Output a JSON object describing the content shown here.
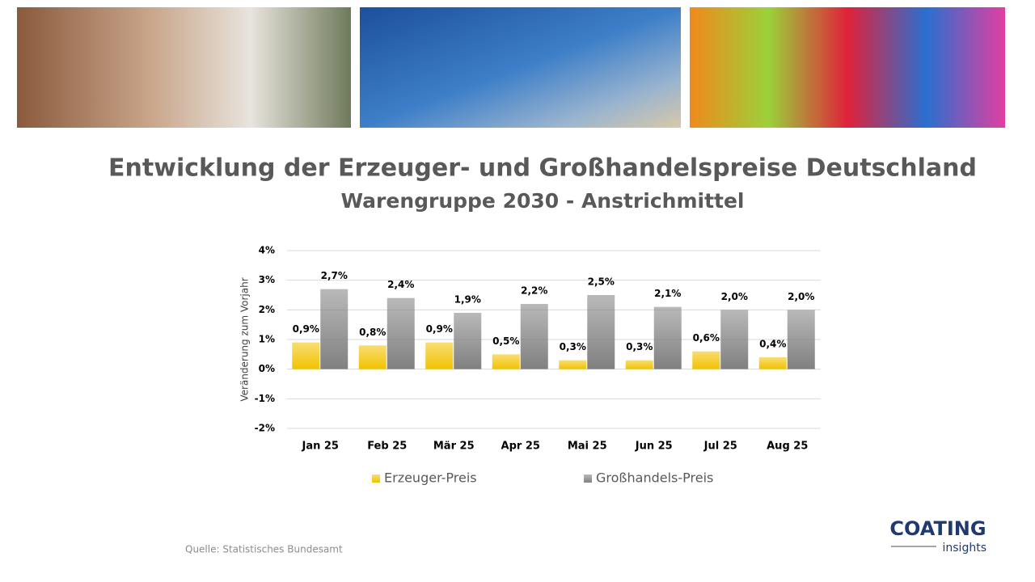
{
  "chart_data": {
    "type": "bar",
    "title": "Entwicklung der Erzeuger- und Großhandelspreise Deutschland",
    "subtitle": "Warengruppe 2030 - Anstrichmittel",
    "y_label": "Veränderung zum Vorjahr",
    "categories": [
      "Jan 25",
      "Feb 25",
      "Mär 25",
      "Apr 25",
      "Mai 25",
      "Jun 25",
      "Jul 25",
      "Aug 25"
    ],
    "series": [
      {
        "name": "Erzeuger-Preis",
        "color": "#f2c200",
        "values": [
          0.9,
          0.8,
          0.9,
          0.5,
          0.3,
          0.3,
          0.6,
          0.4
        ],
        "value_labels": [
          "0,9%",
          "0,8%",
          "0,9%",
          "0,5%",
          "0,3%",
          "0,3%",
          "0,6%",
          "0,4%"
        ]
      },
      {
        "name": "Großhandels-Preis",
        "color": "#808080",
        "values": [
          2.7,
          2.4,
          1.9,
          2.2,
          2.5,
          2.1,
          2.0,
          2.0
        ],
        "value_labels": [
          "2,7%",
          "2,4%",
          "1,9%",
          "2,2%",
          "2,5%",
          "2,1%",
          "2,0%",
          "2,0%"
        ]
      }
    ],
    "ylim": [
      -2,
      4
    ],
    "yticks": [
      {
        "value": -2,
        "label": "-2%"
      },
      {
        "value": -1,
        "label": "-1%"
      },
      {
        "value": 0,
        "label": "0%"
      },
      {
        "value": 1,
        "label": "1%"
      },
      {
        "value": 2,
        "label": "2%"
      },
      {
        "value": 3,
        "label": "3%"
      },
      {
        "value": 4,
        "label": "4%"
      }
    ],
    "grid": true,
    "legend": "bottom"
  },
  "footer": {
    "source": "Quelle: Statistisches Bundesamt",
    "logo_brand": "COATING",
    "logo_tagline": "insights"
  }
}
